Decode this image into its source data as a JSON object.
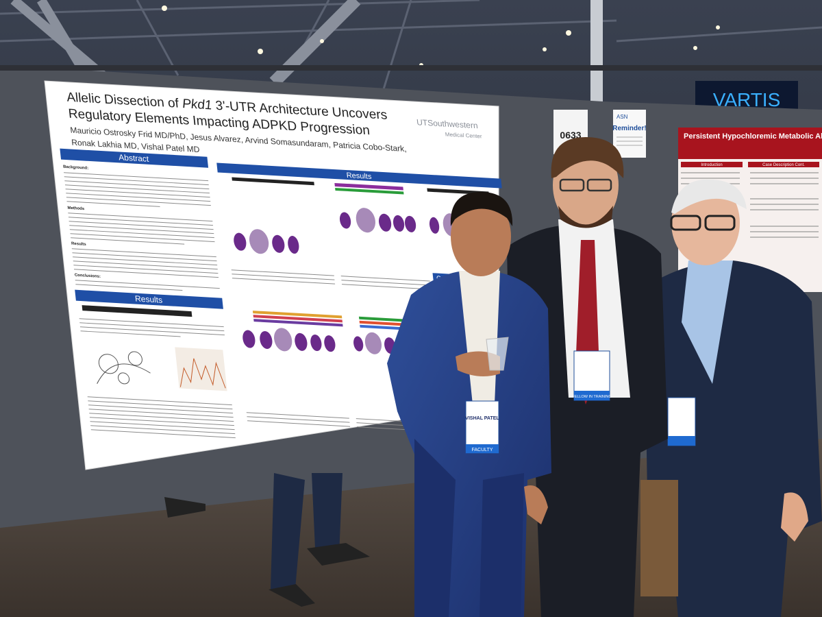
{
  "poster": {
    "title": [
      "Allelic Dissection of ",
      "Pkd1",
      " 3'-UTR Architecture Uncovers",
      "Regulatory Elements Impacting ADPKD Progression"
    ],
    "authors": [
      "Mauricio Ostrosky Frid MD/PhD, Jesus Alvarez, Arvind Somasundaram, Patricia Cobo-Stark,",
      "Ronak Lakhia MD, Vishal Patel MD"
    ],
    "logo": [
      "UTSouthwestern",
      "Medical Center"
    ],
    "sections": {
      "abstract": "Abstract",
      "results_top": "Results",
      "results_left": "Results",
      "conclusions": "Conc"
    },
    "abstract_headings": [
      "Background:",
      "Methods",
      "Results",
      "Conclusions:"
    ]
  },
  "booth": {
    "number": "0633",
    "sign": "Reminder!",
    "sign_brand": "ASN"
  },
  "neighbor_poster": {
    "title": "Persistent Hypochloremic Metabolic Alkalosis after Gastric Augment",
    "headers": [
      "Introduction",
      "Case Description Cont."
    ]
  },
  "banner": "VARTIS",
  "badges": [
    {
      "name": "VISHAL PATEL",
      "role": "FACULTY"
    },
    {
      "role": "FELLOW IN TRAINING"
    }
  ]
}
